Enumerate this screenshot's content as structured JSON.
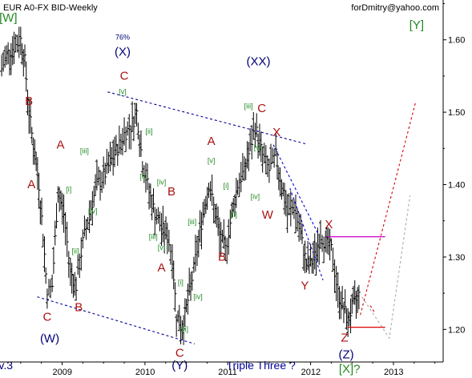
{
  "header": {
    "title": "EUR A0-FX BID-Weekly",
    "author": "forDmitry@yahoo.com"
  },
  "chart_data": {
    "type": "ohlc-bar",
    "symbol": "EUR A0-FX BID",
    "interval": "Weekly",
    "ylim": [
      1.155,
      1.655
    ],
    "xlim": [
      2008.25,
      2013.6
    ],
    "y_ticks": [
      1.2,
      1.3,
      1.4,
      1.5,
      1.6
    ],
    "y_tick_labels": [
      "1.20",
      "1.30",
      "1.40",
      "1.50",
      "1.60"
    ],
    "x_ticks": [
      2009,
      2010,
      2011,
      2012,
      2013
    ],
    "x_tick_labels": [
      "2009",
      "2010",
      "2011",
      "2012",
      "2013"
    ],
    "price_path": [
      [
        2008.27,
        1.56
      ],
      [
        2008.33,
        1.58
      ],
      [
        2008.42,
        1.59
      ],
      [
        2008.5,
        1.6
      ],
      [
        2008.55,
        1.57
      ],
      [
        2008.6,
        1.5
      ],
      [
        2008.67,
        1.44
      ],
      [
        2008.72,
        1.4
      ],
      [
        2008.77,
        1.33
      ],
      [
        2008.82,
        1.25
      ],
      [
        2008.88,
        1.26
      ],
      [
        2008.95,
        1.39
      ],
      [
        2009.02,
        1.36
      ],
      [
        2009.1,
        1.28
      ],
      [
        2009.17,
        1.26
      ],
      [
        2009.25,
        1.32
      ],
      [
        2009.33,
        1.36
      ],
      [
        2009.42,
        1.4
      ],
      [
        2009.5,
        1.41
      ],
      [
        2009.58,
        1.43
      ],
      [
        2009.67,
        1.45
      ],
      [
        2009.75,
        1.47
      ],
      [
        2009.83,
        1.48
      ],
      [
        2009.9,
        1.5
      ],
      [
        2009.97,
        1.43
      ],
      [
        2010.05,
        1.39
      ],
      [
        2010.12,
        1.36
      ],
      [
        2010.2,
        1.34
      ],
      [
        2010.27,
        1.33
      ],
      [
        2010.33,
        1.3
      ],
      [
        2010.38,
        1.22
      ],
      [
        2010.45,
        1.2
      ],
      [
        2010.5,
        1.23
      ],
      [
        2010.57,
        1.27
      ],
      [
        2010.63,
        1.31
      ],
      [
        2010.7,
        1.36
      ],
      [
        2010.77,
        1.4
      ],
      [
        2010.83,
        1.37
      ],
      [
        2010.9,
        1.33
      ],
      [
        2010.97,
        1.31
      ],
      [
        2011.05,
        1.36
      ],
      [
        2011.12,
        1.4
      ],
      [
        2011.2,
        1.42
      ],
      [
        2011.27,
        1.45
      ],
      [
        2011.33,
        1.48
      ],
      [
        2011.42,
        1.44
      ],
      [
        2011.5,
        1.42
      ],
      [
        2011.58,
        1.44
      ],
      [
        2011.65,
        1.4
      ],
      [
        2011.72,
        1.36
      ],
      [
        2011.8,
        1.37
      ],
      [
        2011.88,
        1.33
      ],
      [
        2011.95,
        1.29
      ],
      [
        2012.0,
        1.29
      ],
      [
        2012.05,
        1.3
      ],
      [
        2012.12,
        1.33
      ],
      [
        2012.18,
        1.32
      ],
      [
        2012.25,
        1.31
      ],
      [
        2012.33,
        1.25
      ],
      [
        2012.4,
        1.23
      ],
      [
        2012.45,
        1.21
      ],
      [
        2012.5,
        1.23
      ],
      [
        2012.55,
        1.24
      ],
      [
        2012.6,
        1.25
      ]
    ],
    "levels": [
      {
        "name": "resistance",
        "price": 1.328,
        "x_start": 2012.2,
        "x_end": 2012.9,
        "color": "#cc00cc"
      },
      {
        "name": "support",
        "price": 1.203,
        "x_start": 2012.45,
        "x_end": 2012.9,
        "color": "#dd0000"
      }
    ],
    "trendlines": [
      {
        "name": "lower-left",
        "points": [
          [
            2008.7,
            1.245
          ],
          [
            2010.6,
            1.18
          ]
        ],
        "color": "#000099",
        "dash": true
      },
      {
        "name": "upper-left",
        "points": [
          [
            2009.55,
            1.528
          ],
          [
            2011.95,
            1.456
          ]
        ],
        "color": "#000099",
        "dash": true
      },
      {
        "name": "channel-upper",
        "points": [
          [
            2011.55,
            1.455
          ],
          [
            2012.1,
            1.33
          ]
        ],
        "color": "#0000cc",
        "dash": true
      },
      {
        "name": "channel-lower",
        "points": [
          [
            2011.75,
            1.395
          ],
          [
            2012.15,
            1.268
          ]
        ],
        "color": "#0000cc",
        "dash": true
      },
      {
        "name": "projection-red",
        "points": [
          [
            2012.6,
            1.22
          ],
          [
            2013.27,
            1.515
          ]
        ],
        "color": "#dd0000",
        "dash": true
      },
      {
        "name": "projection-red-short",
        "points": [
          [
            2012.72,
            1.233
          ],
          [
            2012.78,
            1.222
          ]
        ],
        "color": "#dd0000",
        "dash": true
      },
      {
        "name": "projection-gray",
        "points": [
          [
            2012.62,
            1.245
          ],
          [
            2012.95,
            1.188
          ],
          [
            2013.2,
            1.385
          ]
        ],
        "color": "#aaaaaa",
        "dash": true
      }
    ],
    "annotations": [
      {
        "text": "[W]",
        "x": 2008.35,
        "y": 1.625,
        "color": "#228822",
        "size": "big"
      },
      {
        "text": "B",
        "x": 2008.6,
        "y": 1.51,
        "color": "#aa1111",
        "size": "big"
      },
      {
        "text": "A",
        "x": 2008.63,
        "y": 1.395,
        "color": "#aa1111",
        "size": "big"
      },
      {
        "text": "C",
        "x": 2008.82,
        "y": 1.212,
        "color": "#aa1111",
        "size": "big"
      },
      {
        "text": "(W)",
        "x": 2008.85,
        "y": 1.182,
        "color": "#000077",
        "size": "big"
      },
      {
        "text": "A",
        "x": 2008.98,
        "y": 1.45,
        "color": "#aa1111",
        "size": "big"
      },
      {
        "text": "B",
        "x": 2009.2,
        "y": 1.225,
        "color": "#aa1111",
        "size": "big"
      },
      {
        "text": "[i]",
        "x": 2009.08,
        "y": 1.39,
        "color": "#228822",
        "size": "small"
      },
      {
        "text": "[ii]",
        "x": 2009.16,
        "y": 1.305,
        "color": "#228822",
        "size": "small"
      },
      {
        "text": "[iii]",
        "x": 2009.27,
        "y": 1.443,
        "color": "#228822",
        "size": "small"
      },
      {
        "text": "[iv]",
        "x": 2009.37,
        "y": 1.36,
        "color": "#228822",
        "size": "small"
      },
      {
        "text": "76%",
        "x": 2009.73,
        "y": 1.6,
        "color": "#000077",
        "size": "small"
      },
      {
        "text": "(X)",
        "x": 2009.73,
        "y": 1.578,
        "color": "#000077",
        "size": "big"
      },
      {
        "text": "C",
        "x": 2009.75,
        "y": 1.545,
        "color": "#aa1111",
        "size": "big"
      },
      {
        "text": "[v]",
        "x": 2009.73,
        "y": 1.525,
        "color": "#228822",
        "size": "small"
      },
      {
        "text": "[ii]",
        "x": 2010.05,
        "y": 1.47,
        "color": "#228822",
        "size": "small"
      },
      {
        "text": "[i]",
        "x": 2009.97,
        "y": 1.408,
        "color": "#228822",
        "size": "small"
      },
      {
        "text": "[iv]",
        "x": 2010.2,
        "y": 1.4,
        "color": "#228822",
        "size": "small"
      },
      {
        "text": "[iii]",
        "x": 2010.1,
        "y": 1.325,
        "color": "#228822",
        "size": "small"
      },
      {
        "text": "[v]",
        "x": 2010.2,
        "y": 1.31,
        "color": "#228822",
        "size": "small"
      },
      {
        "text": "B",
        "x": 2010.32,
        "y": 1.385,
        "color": "#aa1111",
        "size": "big"
      },
      {
        "text": "A",
        "x": 2010.2,
        "y": 1.28,
        "color": "#aa1111",
        "size": "big"
      },
      {
        "text": "[i]",
        "x": 2010.43,
        "y": 1.262,
        "color": "#228822",
        "size": "small"
      },
      {
        "text": "[iii]",
        "x": 2010.57,
        "y": 1.345,
        "color": "#228822",
        "size": "small"
      },
      {
        "text": "[iv]",
        "x": 2010.64,
        "y": 1.242,
        "color": "#228822",
        "size": "small"
      },
      {
        "text": "[ii]",
        "x": 2010.48,
        "y": 1.197,
        "color": "#228822",
        "size": "small"
      },
      {
        "text": "C",
        "x": 2010.42,
        "y": 1.162,
        "color": "#aa1111",
        "size": "big"
      },
      {
        "text": "A",
        "x": 2010.8,
        "y": 1.455,
        "color": "#aa1111",
        "size": "big"
      },
      {
        "text": "[v]",
        "x": 2010.8,
        "y": 1.43,
        "color": "#228822",
        "size": "small"
      },
      {
        "text": "[i]",
        "x": 2010.98,
        "y": 1.395,
        "color": "#228822",
        "size": "small"
      },
      {
        "text": "[ii]",
        "x": 2011.07,
        "y": 1.355,
        "color": "#228822",
        "size": "small"
      },
      {
        "text": "[iii]",
        "x": 2011.25,
        "y": 1.505,
        "color": "#228822",
        "size": "small"
      },
      {
        "text": "[v]",
        "x": 2011.36,
        "y": 1.448,
        "color": "#228822",
        "size": "small"
      },
      {
        "text": "[iv]",
        "x": 2011.33,
        "y": 1.38,
        "color": "#228822",
        "size": "small"
      },
      {
        "text": "B",
        "x": 2010.93,
        "y": 1.295,
        "color": "#aa1111",
        "size": "big"
      },
      {
        "text": "(XX)",
        "x": 2011.37,
        "y": 1.565,
        "color": "#000077",
        "size": "big"
      },
      {
        "text": "C",
        "x": 2011.41,
        "y": 1.5,
        "color": "#aa1111",
        "size": "big"
      },
      {
        "text": "X",
        "x": 2011.59,
        "y": 1.467,
        "color": "#aa1111",
        "size": "big"
      },
      {
        "text": "W",
        "x": 2011.48,
        "y": 1.353,
        "color": "#aa1111",
        "size": "big"
      },
      {
        "text": "Y",
        "x": 2011.93,
        "y": 1.255,
        "color": "#aa1111",
        "size": "big"
      },
      {
        "text": "X",
        "x": 2012.22,
        "y": 1.34,
        "color": "#aa1111",
        "size": "big"
      },
      {
        "text": "Z",
        "x": 2012.41,
        "y": 1.183,
        "color": "#aa1111",
        "size": "big"
      },
      {
        "text": "(Z)",
        "x": 2012.43,
        "y": 1.16,
        "color": "#000077",
        "size": "big"
      },
      {
        "text": "[X]?",
        "x": 2012.47,
        "y": 1.14,
        "color": "#228822",
        "size": "big"
      },
      {
        "text": "[Y]",
        "x": 2013.28,
        "y": 1.615,
        "color": "#228822",
        "size": "big"
      },
      {
        "text": "(Y)",
        "x": 2010.42,
        "y": 1.145,
        "color": "#000077",
        "size": "big"
      },
      {
        "text": "Triple Three ?",
        "x": 2011.4,
        "y": 1.145,
        "color": "#000099",
        "size": "mid"
      },
      {
        "text": "v.3",
        "x": 2008.32,
        "y": 1.145,
        "color": "#000077",
        "size": "mid"
      }
    ]
  }
}
